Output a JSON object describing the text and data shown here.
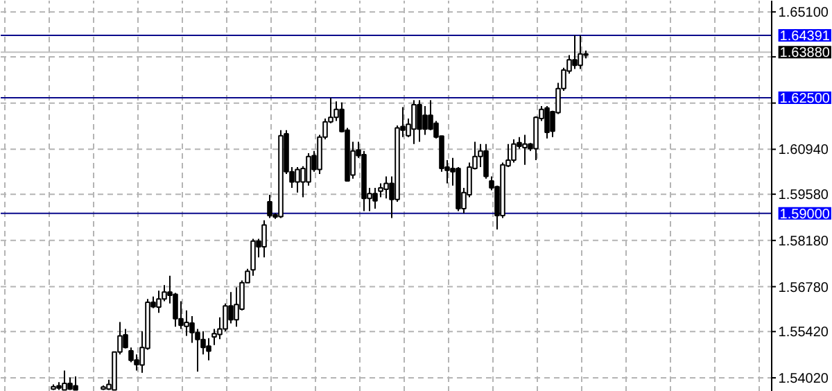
{
  "chart_data": {
    "type": "candlestick",
    "categories": [
      null,
      null,
      null,
      null,
      null,
      null,
      null,
      null,
      null,
      null,
      null,
      null,
      null,
      null,
      null,
      null,
      null,
      null,
      null,
      null,
      null,
      null,
      null,
      null,
      null,
      null,
      null,
      null,
      null,
      null,
      null,
      null,
      null,
      null,
      null,
      null,
      null,
      null,
      null,
      null,
      null,
      null,
      null,
      null,
      null,
      null,
      null,
      null,
      null,
      null,
      null,
      null,
      null,
      null,
      null,
      null,
      null,
      null,
      null,
      null,
      null,
      null,
      null,
      null,
      null,
      null,
      null,
      null,
      null,
      null,
      null,
      null,
      null,
      null,
      null,
      null,
      null,
      null,
      null,
      null,
      null,
      null,
      null,
      null,
      null,
      null,
      null,
      null,
      null,
      null,
      null,
      null,
      null,
      null,
      null,
      null,
      null,
      null,
      null,
      null,
      null,
      null,
      null,
      null,
      null,
      null,
      null,
      null,
      null,
      null,
      null,
      null,
      null,
      null,
      null,
      null,
      null,
      null,
      null,
      null,
      null,
      null,
      null,
      null,
      null,
      null,
      null,
      null,
      null,
      null,
      null,
      null,
      null,
      null,
      null,
      null,
      null,
      null,
      null
    ],
    "ohlc": [
      null,
      null,
      null,
      null,
      null,
      null,
      null,
      null,
      null,
      [
        1.5368,
        1.5382,
        1.5365,
        1.5375
      ],
      [
        1.5378,
        1.5389,
        1.5365,
        1.5371
      ],
      [
        1.5365,
        1.5424,
        1.5365,
        1.5385
      ],
      [
        1.5385,
        1.5403,
        1.5365,
        1.5368
      ],
      [
        1.5378,
        1.5406,
        1.5365,
        1.5365
      ],
      null,
      null,
      null,
      null,
      [
        1.5368,
        1.5379,
        1.5365,
        1.5374
      ],
      [
        1.5368,
        1.5396,
        1.5365,
        1.5382
      ],
      [
        1.5365,
        1.548,
        1.5365,
        1.548
      ],
      [
        1.548,
        1.5571,
        1.5473,
        1.5529
      ],
      [
        1.5532,
        1.555,
        1.5491,
        1.5494
      ],
      [
        1.5484,
        1.5494,
        1.5449,
        1.5455
      ],
      [
        1.5456,
        1.5473,
        1.5424,
        1.5442
      ],
      [
        1.5441,
        1.5543,
        1.5417,
        1.5494
      ],
      [
        1.5491,
        1.5641,
        1.5487,
        1.5631
      ],
      [
        1.5631,
        1.5648,
        1.5613,
        1.5617
      ],
      [
        1.5616,
        1.5666,
        1.5599,
        1.5641
      ],
      [
        1.5641,
        1.5683,
        1.5634,
        1.5662
      ],
      [
        1.5662,
        1.5711,
        1.5627,
        1.5652
      ],
      [
        1.5655,
        1.5659,
        1.5557,
        1.5581
      ],
      [
        1.5581,
        1.5634,
        1.555,
        1.5561
      ],
      [
        1.5558,
        1.5606,
        1.5529,
        1.557
      ],
      [
        1.5568,
        1.5589,
        1.5508,
        1.5539
      ],
      [
        1.5539,
        1.555,
        1.5421,
        1.5518
      ],
      [
        1.5518,
        1.5543,
        1.5473,
        1.5494
      ],
      [
        1.5498,
        1.5522,
        1.5455,
        1.5483
      ],
      [
        1.5526,
        1.555,
        1.5501,
        1.5536
      ],
      [
        1.5533,
        1.5585,
        1.5519,
        1.555
      ],
      [
        1.555,
        1.5627,
        1.5543,
        1.562
      ],
      [
        1.562,
        1.5662,
        1.5567,
        1.5578
      ],
      [
        1.5578,
        1.5676,
        1.5557,
        1.5624
      ],
      [
        1.561,
        1.5697,
        1.5606,
        1.569
      ],
      [
        1.569,
        1.5732,
        1.569,
        1.5725
      ],
      [
        1.5729,
        1.5823,
        1.5711,
        1.5816
      ],
      [
        1.5816,
        1.5823,
        1.5767,
        1.5799
      ],
      [
        1.5799,
        1.5879,
        1.5767,
        1.5865
      ],
      [
        1.5935,
        1.5956,
        1.5886,
        1.5893
      ],
      [
        1.5896,
        1.59,
        1.5883,
        1.5889
      ],
      [
        1.589,
        1.6152,
        1.5886,
        1.6135
      ],
      [
        1.6141,
        1.6152,
        1.6019,
        1.6026
      ],
      [
        1.6026,
        1.604,
        1.5977,
        1.5995
      ],
      [
        1.5995,
        1.604,
        1.5963,
        1.6033
      ],
      [
        1.5995,
        1.6043,
        1.5949,
        1.6036
      ],
      [
        1.5995,
        1.6082,
        1.5984,
        1.6072
      ],
      [
        1.6075,
        1.6089,
        1.6026,
        1.6033
      ],
      [
        1.6033,
        1.6138,
        1.6019,
        1.6131
      ],
      [
        1.6131,
        1.6187,
        1.6124,
        1.6177
      ],
      [
        1.6177,
        1.625,
        1.6173,
        1.6191
      ],
      [
        1.6191,
        1.6239,
        1.618,
        1.6215
      ],
      [
        1.6215,
        1.6236,
        1.6145,
        1.6148
      ],
      [
        1.6152,
        1.6159,
        1.5998,
        1.5998
      ],
      [
        1.6016,
        1.6117,
        1.6005,
        1.6089
      ],
      [
        1.6092,
        1.6117,
        1.6068,
        1.6075
      ],
      [
        1.6078,
        1.6089,
        1.5907,
        1.5945
      ],
      [
        1.5945,
        1.5977,
        1.5907,
        1.596
      ],
      [
        1.596,
        1.5977,
        1.5914,
        1.5938
      ],
      [
        1.5967,
        1.5991,
        1.5949,
        1.5977
      ],
      [
        1.5973,
        1.6012,
        1.5945,
        1.5991
      ],
      [
        1.5991,
        1.6012,
        1.5886,
        1.5942
      ],
      [
        1.5942,
        1.6166,
        1.5935,
        1.6159
      ],
      [
        1.6163,
        1.6222,
        1.6131,
        1.6152
      ],
      [
        1.6135,
        1.6187,
        1.6131,
        1.617
      ],
      [
        1.6155,
        1.6243,
        1.611,
        1.6229
      ],
      [
        1.6229,
        1.6243,
        1.6117,
        1.6155
      ],
      [
        1.6197,
        1.6225,
        1.6138,
        1.6155
      ],
      [
        1.6197,
        1.6243,
        1.6152,
        1.6155
      ],
      [
        1.6173,
        1.618,
        1.6127,
        1.6131
      ],
      [
        1.6134,
        1.6135,
        1.6026,
        1.6036
      ],
      [
        1.604,
        1.6061,
        1.5991,
        1.603
      ],
      [
        1.6036,
        1.6068,
        1.5984,
        1.6026
      ],
      [
        1.6036,
        1.604,
        1.5907,
        1.5914
      ],
      [
        1.5914,
        1.5977,
        1.59,
        1.5963
      ],
      [
        1.5956,
        1.6054,
        1.5949,
        1.604
      ],
      [
        1.6036,
        1.6117,
        1.6033,
        1.6072
      ],
      [
        1.6072,
        1.611,
        1.604,
        1.6089
      ],
      [
        1.6089,
        1.611,
        1.6005,
        1.6012
      ],
      [
        1.5998,
        1.6012,
        1.597,
        1.5977
      ],
      [
        1.5981,
        1.5984,
        1.5851,
        1.5893
      ],
      [
        1.5893,
        1.6054,
        1.5886,
        1.6047
      ],
      [
        1.6044,
        1.611,
        1.604,
        1.6061
      ],
      [
        1.6061,
        1.6124,
        1.6054,
        1.611
      ],
      [
        1.6114,
        1.6131,
        1.6096,
        1.6103
      ],
      [
        1.6099,
        1.6138,
        1.6047,
        1.611
      ],
      [
        1.611,
        1.6113,
        1.6089,
        1.6096
      ],
      [
        1.6096,
        1.6194,
        1.6061,
        1.6191
      ],
      [
        1.6187,
        1.6225,
        1.618,
        1.6215
      ],
      [
        1.6219,
        1.6225,
        1.6127,
        1.6145
      ],
      [
        1.6208,
        1.6211,
        1.6131,
        1.6149
      ],
      [
        1.6205,
        1.6295,
        1.6201,
        1.6278
      ],
      [
        1.6278,
        1.6341,
        1.6271,
        1.6334
      ],
      [
        1.6331,
        1.6379,
        1.6323,
        1.6365
      ],
      [
        1.6365,
        1.6439,
        1.6337,
        1.6348
      ],
      [
        1.6348,
        1.6439,
        1.6337,
        1.6383
      ],
      [
        1.6379,
        1.6393,
        1.6369,
        1.6383
      ],
      null,
      null,
      null,
      null,
      null,
      null,
      null,
      null,
      null,
      null,
      null,
      null,
      null,
      null,
      null,
      null,
      null,
      null,
      null,
      null,
      null,
      null,
      null,
      null,
      null,
      null,
      null,
      null,
      null,
      null,
      null,
      null,
      null
    ],
    "ylim": [
      1.536,
      1.6544
    ],
    "yticks": [
      {
        "value": 1.5402,
        "label": "1.54020"
      },
      {
        "value": 1.5542,
        "label": "1.55420"
      },
      {
        "value": 1.5678,
        "label": "1.56780"
      },
      {
        "value": 1.5818,
        "label": "1.58180"
      },
      {
        "value": 1.5958,
        "label": "1.59580"
      },
      {
        "value": 1.6094,
        "label": "1.60940"
      },
      {
        "value": 1.6234,
        "label": null
      },
      {
        "value": 1.6374,
        "label": null
      },
      {
        "value": 1.651,
        "label": "1.65100"
      }
    ],
    "ref_lines": [
      {
        "axis": "y",
        "value": 1.64391,
        "label": "1.64391",
        "color": "#0a0a8c"
      },
      {
        "axis": "y",
        "value": 1.6388,
        "label": "1.63880",
        "color": "#c0c0c0"
      },
      {
        "axis": "y",
        "value": 1.625,
        "label": "1.62500",
        "color": "#0a0a8c"
      },
      {
        "axis": "y",
        "value": 1.59,
        "label": "1.59000",
        "color": "#0a0a8c"
      }
    ],
    "grid": true,
    "tick_labels": "y"
  }
}
